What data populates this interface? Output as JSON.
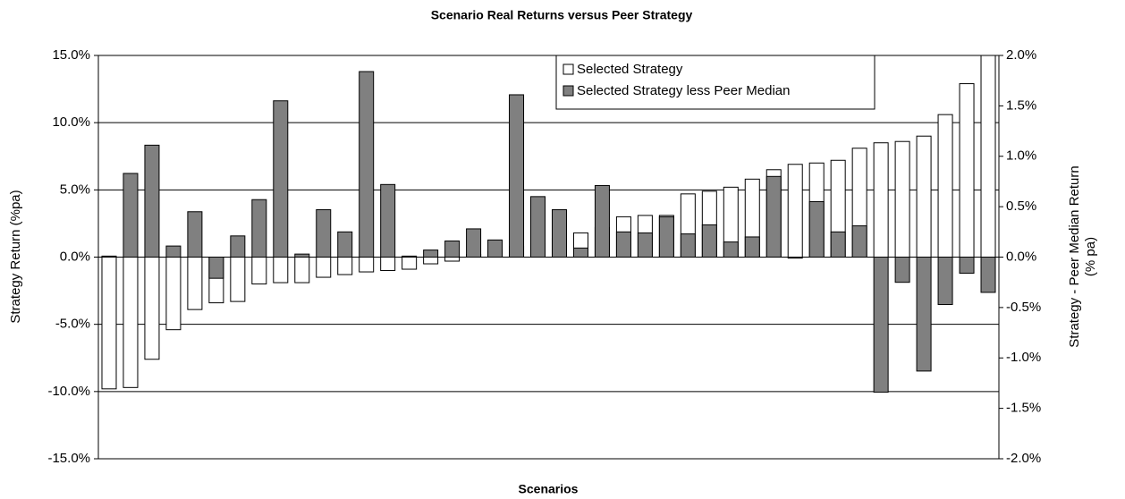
{
  "chart_data": {
    "type": "bar",
    "title": "Scenario Real Returns versus Peer Strategy",
    "x_label": "Scenarios",
    "y_label": "Strategy Return (%pa)",
    "y2_label": [
      "Strategy  - Peer Median Return",
      "(% pa)"
    ],
    "categories": [
      null,
      null,
      null,
      null,
      null,
      null,
      null,
      null,
      null,
      null,
      null,
      null,
      null,
      null,
      null,
      null,
      null,
      null,
      null,
      null,
      null,
      null,
      null,
      null,
      null,
      null,
      null,
      null,
      null,
      null,
      null,
      null,
      null,
      null,
      null,
      null,
      null,
      null,
      null,
      null,
      null,
      null
    ],
    "series": [
      {
        "name": "Selected Strategy",
        "color": "#ffffff",
        "axis": "y",
        "values": [
          -9.8,
          -9.7,
          -7.6,
          -5.4,
          -3.9,
          -3.4,
          -3.3,
          -2.0,
          -1.9,
          -1.9,
          -1.5,
          -1.3,
          -1.1,
          -1.0,
          -0.9,
          -0.5,
          -0.3,
          0.2,
          0.5,
          0.8,
          1.0,
          1.4,
          1.8,
          2.2,
          3.0,
          3.1,
          3.1,
          4.7,
          4.9,
          5.2,
          5.8,
          6.5,
          6.9,
          7.0,
          7.2,
          8.1,
          8.5,
          8.6,
          9.0,
          10.6,
          12.9,
          15.0
        ]
      },
      {
        "name": "Selected Strategy less Peer Median",
        "color": "#808080",
        "axis": "y2",
        "values": [
          0.01,
          0.83,
          1.11,
          0.11,
          0.45,
          -0.21,
          0.21,
          0.57,
          1.55,
          0.03,
          0.47,
          0.25,
          1.84,
          0.72,
          0.01,
          0.07,
          0.16,
          0.28,
          0.17,
          1.61,
          0.6,
          0.47,
          0.09,
          0.71,
          0.25,
          0.24,
          0.4,
          0.23,
          0.32,
          0.15,
          0.2,
          0.8,
          -0.01,
          0.55,
          0.25,
          0.31,
          -1.34,
          -0.25,
          -1.13,
          -0.47,
          -0.16,
          -0.35
        ]
      }
    ],
    "ylim": [
      -15,
      15
    ],
    "yticks": [
      {
        "value": -15,
        "label": "-15.0%"
      },
      {
        "value": -10,
        "label": "-10.0%"
      },
      {
        "value": -5,
        "label": "-5.0%"
      },
      {
        "value": 0,
        "label": "0.0%"
      },
      {
        "value": 5,
        "label": "5.0%"
      },
      {
        "value": 10,
        "label": "10.0%"
      },
      {
        "value": 15,
        "label": "15.0%"
      }
    ],
    "y2lim": [
      -2,
      2
    ],
    "y2ticks": [
      {
        "value": -2,
        "label": "-2.0%"
      },
      {
        "value": -1.5,
        "label": "-1.5%"
      },
      {
        "value": -1,
        "label": "-1.0%"
      },
      {
        "value": -0.5,
        "label": "-0.5%"
      },
      {
        "value": 0,
        "label": "0.0%"
      },
      {
        "value": 0.5,
        "label": "0.5%"
      },
      {
        "value": 1,
        "label": "1.0%"
      },
      {
        "value": 1.5,
        "label": "1.5%"
      },
      {
        "value": 2,
        "label": "2.0%"
      }
    ],
    "grid": true,
    "legend": "top-right"
  }
}
